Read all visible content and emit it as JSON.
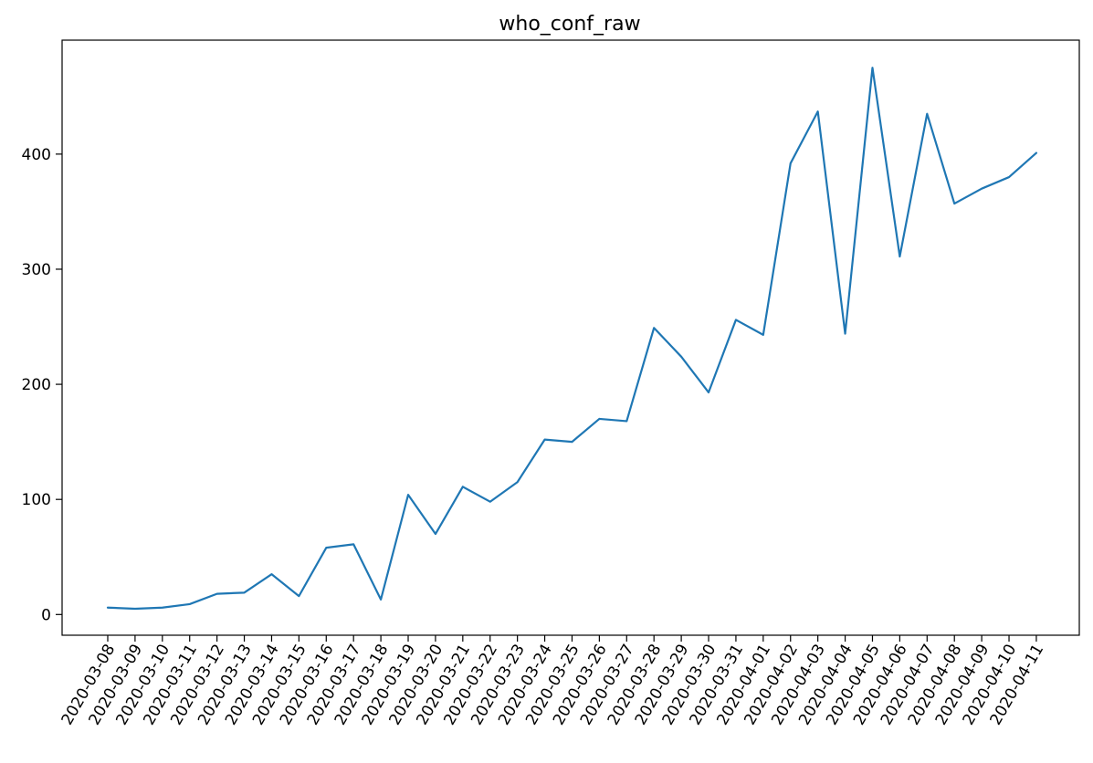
{
  "chart_data": {
    "type": "line",
    "title": "who_conf_raw",
    "xlabel": "",
    "ylabel": "",
    "x": [
      "2020-03-08",
      "2020-03-09",
      "2020-03-10",
      "2020-03-11",
      "2020-03-12",
      "2020-03-13",
      "2020-03-14",
      "2020-03-15",
      "2020-03-16",
      "2020-03-17",
      "2020-03-18",
      "2020-03-19",
      "2020-03-20",
      "2020-03-21",
      "2020-03-22",
      "2020-03-23",
      "2020-03-24",
      "2020-03-25",
      "2020-03-26",
      "2020-03-27",
      "2020-03-28",
      "2020-03-29",
      "2020-03-30",
      "2020-03-31",
      "2020-04-01",
      "2020-04-02",
      "2020-04-03",
      "2020-04-04",
      "2020-04-05",
      "2020-04-06",
      "2020-04-07",
      "2020-04-08",
      "2020-04-09",
      "2020-04-10",
      "2020-04-11"
    ],
    "series": [
      {
        "values": [
          6,
          5,
          6,
          9,
          18,
          19,
          35,
          16,
          58,
          61,
          13,
          104,
          70,
          111,
          98,
          115,
          152,
          150,
          170,
          168,
          249,
          224,
          193,
          256,
          243,
          392,
          437,
          244,
          475,
          311,
          435,
          357,
          370,
          380,
          401
        ],
        "color": "#1f77b4"
      }
    ],
    "ylim": [
      -18,
      499
    ],
    "yticks": [
      0,
      100,
      200,
      300,
      400
    ],
    "ytick_labels": [
      "0",
      "100",
      "200",
      "300",
      "400"
    ],
    "grid": false,
    "legend": "none"
  }
}
